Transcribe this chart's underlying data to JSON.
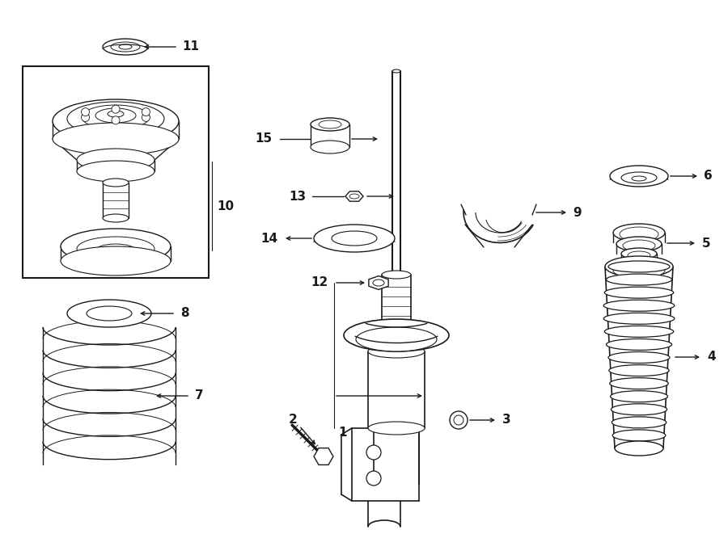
{
  "bg_color": "#ffffff",
  "line_color": "#1a1a1a",
  "label_fontsize": 11,
  "figsize": [
    9.0,
    6.61
  ],
  "dpi": 100,
  "lw": 1.0
}
